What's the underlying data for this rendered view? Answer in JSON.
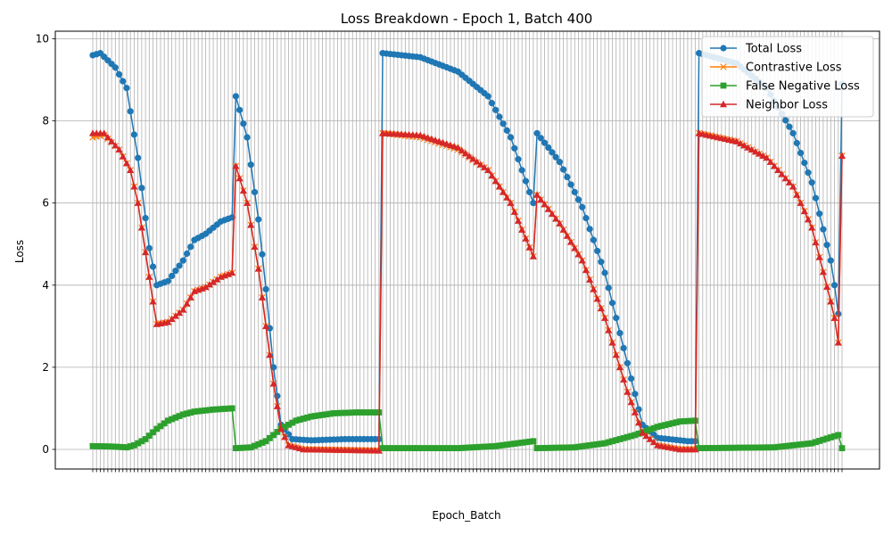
{
  "chart_data": {
    "type": "line",
    "title": "Loss Breakdown - Epoch 1, Batch 400",
    "xlabel": "Epoch_Batch",
    "ylabel": "Loss",
    "ylim": [
      -0.5,
      10.2
    ],
    "yticks": [
      0,
      2,
      4,
      6,
      8,
      10
    ],
    "grid": true,
    "legend_position": "top-right",
    "num_points": 200,
    "series": [
      {
        "name": "Total Loss",
        "color": "#1f77b4",
        "marker": "circle",
        "segments": [
          {
            "start": 0,
            "anchors": [
              [
                0,
                9.6
              ],
              [
                2,
                9.65
              ],
              [
                6,
                9.3
              ],
              [
                9,
                8.8
              ],
              [
                12,
                7.1
              ],
              [
                15,
                4.9
              ],
              [
                17,
                4.0
              ],
              [
                20,
                4.1
              ],
              [
                24,
                4.6
              ],
              [
                27,
                5.1
              ],
              [
                30,
                5.25
              ],
              [
                34,
                5.55
              ],
              [
                37,
                5.65
              ]
            ]
          },
          {
            "start": 38,
            "anchors": [
              [
                0,
                8.6
              ],
              [
                3,
                7.6
              ],
              [
                6,
                5.6
              ],
              [
                8,
                3.9
              ],
              [
                10,
                2.0
              ],
              [
                12,
                0.6
              ],
              [
                15,
                0.25
              ],
              [
                20,
                0.22
              ],
              [
                29,
                0.25
              ],
              [
                38,
                0.25
              ]
            ]
          },
          {
            "start": 77,
            "anchors": [
              [
                0,
                9.65
              ],
              [
                10,
                9.55
              ],
              [
                20,
                9.2
              ],
              [
                28,
                8.6
              ],
              [
                34,
                7.6
              ],
              [
                40,
                6.0
              ]
            ]
          },
          {
            "start": 118,
            "anchors": [
              [
                0,
                7.7
              ],
              [
                6,
                7.0
              ],
              [
                12,
                5.9
              ],
              [
                18,
                4.3
              ],
              [
                24,
                2.1
              ],
              [
                28,
                0.6
              ],
              [
                32,
                0.28
              ],
              [
                40,
                0.2
              ],
              [
                42,
                0.2
              ]
            ]
          },
          {
            "start": 161,
            "anchors": [
              [
                0,
                9.65
              ],
              [
                10,
                9.4
              ],
              [
                18,
                8.8
              ],
              [
                25,
                7.7
              ],
              [
                30,
                6.5
              ],
              [
                35,
                4.6
              ],
              [
                36,
                4.0
              ],
              [
                37,
                3.3
              ]
            ]
          },
          {
            "start": 199,
            "anchors": [
              [
                0,
                8.9
              ]
            ]
          }
        ]
      },
      {
        "name": "Contrastive Loss",
        "color": "#ff7f0e",
        "marker": "x",
        "segments": [
          {
            "start": 0,
            "anchors": [
              [
                0,
                7.6
              ],
              [
                3,
                7.65
              ],
              [
                7,
                7.3
              ],
              [
                10,
                6.8
              ],
              [
                12,
                6.0
              ],
              [
                14,
                4.8
              ],
              [
                16,
                3.6
              ],
              [
                17,
                3.05
              ],
              [
                20,
                3.1
              ],
              [
                24,
                3.4
              ],
              [
                27,
                3.85
              ],
              [
                30,
                3.95
              ],
              [
                34,
                4.2
              ],
              [
                37,
                4.3
              ]
            ]
          },
          {
            "start": 38,
            "anchors": [
              [
                0,
                6.9
              ],
              [
                3,
                6.0
              ],
              [
                6,
                4.4
              ],
              [
                8,
                3.0
              ],
              [
                10,
                1.6
              ],
              [
                12,
                0.5
              ],
              [
                14,
                0.1
              ],
              [
                18,
                0.0
              ],
              [
                38,
                -0.03
              ]
            ]
          },
          {
            "start": 77,
            "anchors": [
              [
                0,
                7.7
              ],
              [
                10,
                7.6
              ],
              [
                20,
                7.3
              ],
              [
                28,
                6.8
              ],
              [
                34,
                6.0
              ],
              [
                40,
                4.7
              ]
            ]
          },
          {
            "start": 118,
            "anchors": [
              [
                0,
                6.2
              ],
              [
                6,
                5.5
              ],
              [
                12,
                4.6
              ],
              [
                18,
                3.2
              ],
              [
                24,
                1.4
              ],
              [
                28,
                0.4
              ],
              [
                32,
                0.1
              ],
              [
                38,
                0.0
              ],
              [
                42,
                0.0
              ]
            ]
          },
          {
            "start": 161,
            "anchors": [
              [
                0,
                7.7
              ],
              [
                10,
                7.5
              ],
              [
                18,
                7.1
              ],
              [
                25,
                6.4
              ],
              [
                30,
                5.4
              ],
              [
                35,
                3.6
              ],
              [
                36,
                3.2
              ],
              [
                37,
                2.6
              ]
            ]
          },
          {
            "start": 199,
            "anchors": [
              [
                0,
                7.15
              ]
            ]
          }
        ]
      },
      {
        "name": "False Negative Loss",
        "color": "#2ca02c",
        "marker": "square",
        "segments": [
          {
            "start": 0,
            "anchors": [
              [
                0,
                0.08
              ],
              [
                5,
                0.07
              ],
              [
                9,
                0.05
              ],
              [
                11,
                0.1
              ],
              [
                14,
                0.25
              ],
              [
                17,
                0.5
              ],
              [
                20,
                0.7
              ],
              [
                24,
                0.85
              ],
              [
                27,
                0.92
              ],
              [
                32,
                0.97
              ],
              [
                37,
                1.0
              ]
            ]
          },
          {
            "start": 38,
            "anchors": [
              [
                0,
                0.03
              ],
              [
                4,
                0.05
              ],
              [
                8,
                0.2
              ],
              [
                12,
                0.5
              ],
              [
                16,
                0.7
              ],
              [
                20,
                0.8
              ],
              [
                26,
                0.88
              ],
              [
                32,
                0.9
              ],
              [
                38,
                0.9
              ]
            ]
          },
          {
            "start": 77,
            "anchors": [
              [
                0,
                0.03
              ],
              [
                20,
                0.03
              ],
              [
                30,
                0.08
              ],
              [
                40,
                0.2
              ]
            ]
          },
          {
            "start": 118,
            "anchors": [
              [
                0,
                0.03
              ],
              [
                10,
                0.05
              ],
              [
                18,
                0.15
              ],
              [
                26,
                0.35
              ],
              [
                32,
                0.55
              ],
              [
                38,
                0.68
              ],
              [
                42,
                0.7
              ]
            ]
          },
          {
            "start": 161,
            "anchors": [
              [
                0,
                0.03
              ],
              [
                20,
                0.05
              ],
              [
                30,
                0.15
              ],
              [
                37,
                0.35
              ]
            ]
          },
          {
            "start": 199,
            "anchors": [
              [
                0,
                0.03
              ]
            ]
          }
        ]
      },
      {
        "name": "Neighbor Loss",
        "color": "#d62728",
        "marker": "triangle",
        "segments": [
          {
            "start": 0,
            "anchors": [
              [
                0,
                7.7
              ],
              [
                3,
                7.7
              ],
              [
                7,
                7.3
              ],
              [
                10,
                6.8
              ],
              [
                12,
                6.0
              ],
              [
                14,
                4.8
              ],
              [
                16,
                3.6
              ],
              [
                17,
                3.05
              ],
              [
                20,
                3.1
              ],
              [
                24,
                3.4
              ],
              [
                27,
                3.85
              ],
              [
                30,
                3.95
              ],
              [
                34,
                4.2
              ],
              [
                37,
                4.3
              ]
            ]
          },
          {
            "start": 38,
            "anchors": [
              [
                0,
                6.9
              ],
              [
                3,
                6.0
              ],
              [
                6,
                4.4
              ],
              [
                8,
                3.0
              ],
              [
                10,
                1.6
              ],
              [
                12,
                0.5
              ],
              [
                14,
                0.1
              ],
              [
                18,
                0.0
              ],
              [
                38,
                -0.03
              ]
            ]
          },
          {
            "start": 77,
            "anchors": [
              [
                0,
                7.7
              ],
              [
                10,
                7.65
              ],
              [
                20,
                7.35
              ],
              [
                28,
                6.8
              ],
              [
                34,
                6.0
              ],
              [
                40,
                4.7
              ]
            ]
          },
          {
            "start": 118,
            "anchors": [
              [
                0,
                6.2
              ],
              [
                6,
                5.5
              ],
              [
                12,
                4.6
              ],
              [
                18,
                3.2
              ],
              [
                24,
                1.4
              ],
              [
                28,
                0.4
              ],
              [
                32,
                0.1
              ],
              [
                38,
                0.0
              ],
              [
                42,
                0.0
              ]
            ]
          },
          {
            "start": 161,
            "anchors": [
              [
                0,
                7.7
              ],
              [
                10,
                7.5
              ],
              [
                18,
                7.1
              ],
              [
                25,
                6.4
              ],
              [
                30,
                5.4
              ],
              [
                35,
                3.6
              ],
              [
                36,
                3.2
              ],
              [
                37,
                2.6
              ]
            ]
          },
          {
            "start": 199,
            "anchors": [
              [
                0,
                7.15
              ]
            ]
          }
        ]
      }
    ]
  }
}
